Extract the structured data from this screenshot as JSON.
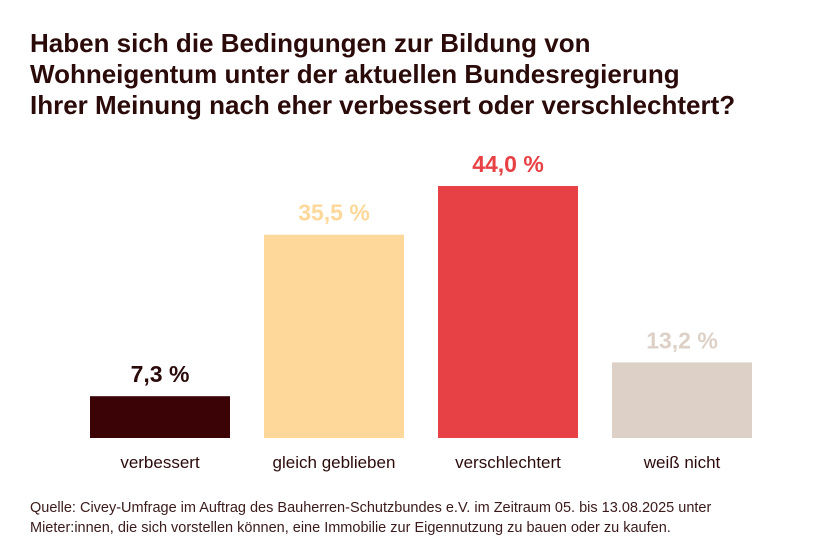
{
  "title_lines": [
    "Haben sich die Bedingungen zur Bildung von",
    "Wohneigentum unter der aktuellen Bundesregierung",
    "Ihrer Meinung nach eher verbessert oder verschlechtert?"
  ],
  "source_lines": [
    "Quelle: Civey-Umfrage im Auftrag des Bauherren-Schutzbundes e.V. im Zeitraum 05. bis 13.08.2025 unter",
    "Mieter:innen, die sich vorstellen können, eine Immobilie zur Eigennutzung zu bauen oder zu kaufen."
  ],
  "chart_data": {
    "type": "bar",
    "title": "Haben sich die Bedingungen zur Bildung von Wohneigentum unter der aktuellen Bundesregierung Ihrer Meinung nach eher verbessert oder verschlechtert?",
    "categories": [
      "verbessert",
      "gleich geblieben",
      "verschlechtert",
      "weiß nicht"
    ],
    "values": [
      7.3,
      35.5,
      44.0,
      13.2
    ],
    "value_labels": [
      "7,3 %",
      "35,5 %",
      "44,0 %",
      "13,2 %"
    ],
    "colors": [
      "#3b0306",
      "#fdd89a",
      "#e84145",
      "#ddd1c7"
    ],
    "label_colors": [
      "#2b0a0a",
      "#fdd89a",
      "#e84145",
      "#ddd1c7"
    ],
    "xlabel": "",
    "ylabel": "",
    "ylim": [
      0,
      44
    ],
    "grid": false,
    "legend": "none"
  }
}
